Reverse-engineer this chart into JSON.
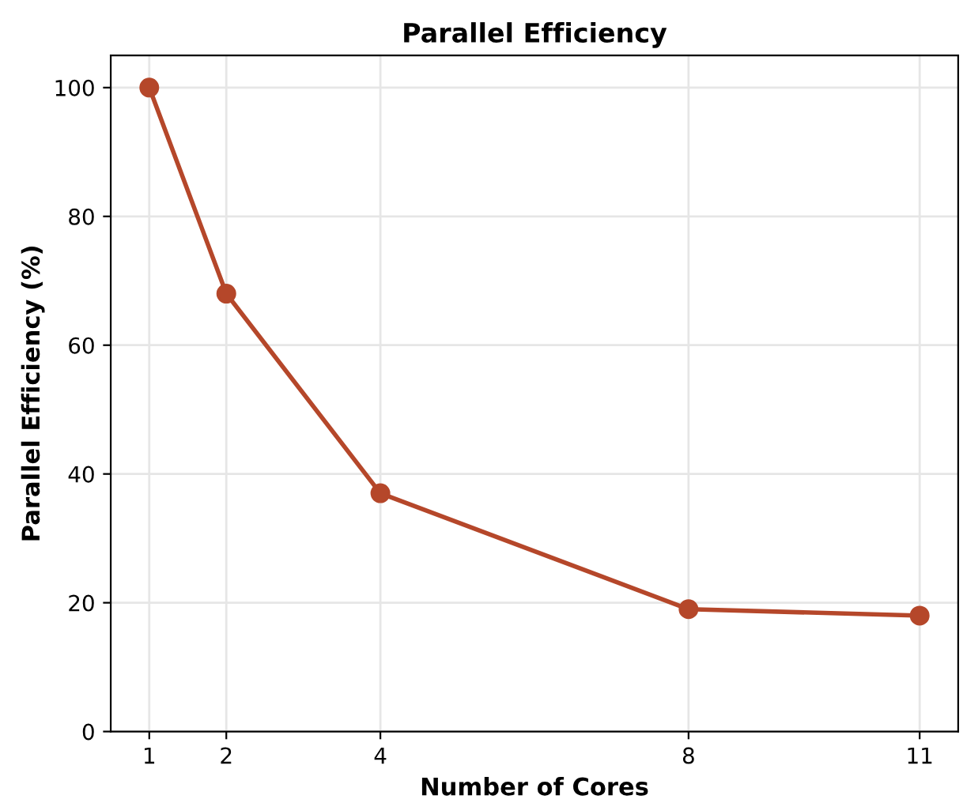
{
  "chart_data": {
    "type": "line",
    "title": "Parallel Efficiency",
    "xlabel": "Number of Cores",
    "ylabel": "Parallel Efficiency (%)",
    "x": [
      1,
      2,
      4,
      8,
      11
    ],
    "series": [
      {
        "color": "#b5472a",
        "values": [
          100,
          68,
          37,
          19,
          18
        ]
      }
    ],
    "xlim": [
      0.5,
      11.5
    ],
    "xticks": [
      1,
      2,
      4,
      8,
      11
    ],
    "ylim": [
      0,
      105
    ],
    "yticks": [
      0,
      20,
      40,
      60,
      80,
      100
    ],
    "grid": true,
    "marker": "circle",
    "line_style": "solid"
  }
}
